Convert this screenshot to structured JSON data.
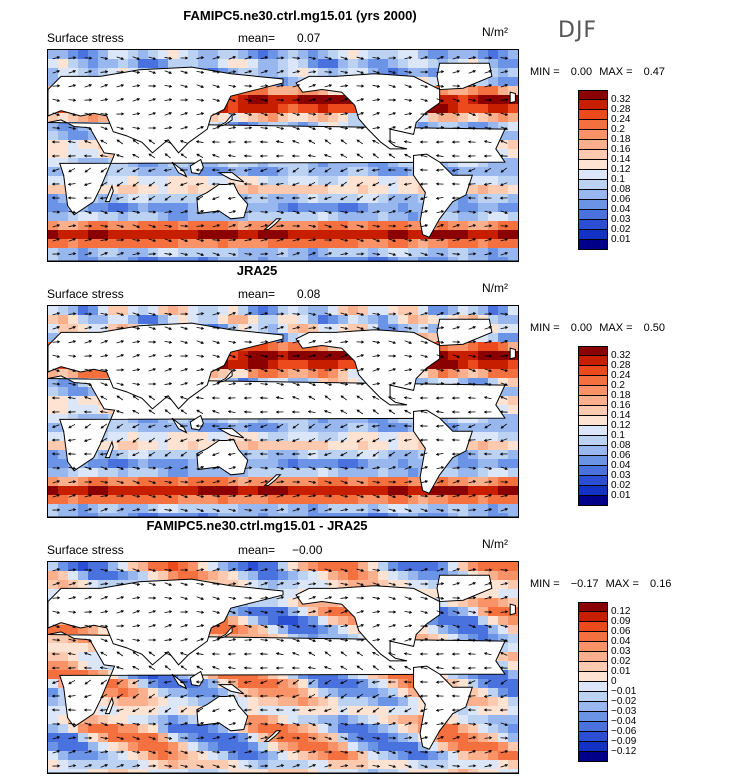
{
  "season": "DJF",
  "chart_data": [
    {
      "type": "heatmap",
      "title": "FAMIPC5.ne30.ctrl.mg15.01 (yrs 2000)",
      "field": "Surface stress",
      "mean_label": "mean=",
      "mean": "0.07",
      "units": "N/m²",
      "min_label": "MIN =",
      "min": "0.00",
      "max_label": "MAX =",
      "max": "0.47",
      "levels": [
        "0.32",
        "0.28",
        "0.24",
        "0.2",
        "0.18",
        "0.16",
        "0.14",
        "0.12",
        "0.1",
        "0.08",
        "0.06",
        "0.04",
        "0.03",
        "0.02",
        "0.01"
      ],
      "colors": [
        "#8b0000",
        "#c81e00",
        "#ec4a1c",
        "#f5703f",
        "#f99367",
        "#fbb08d",
        "#fdcab0",
        "#fee3d3",
        "#dbe7f8",
        "#bcd2f3",
        "#97b7ee",
        "#6c94e6",
        "#4a72de",
        "#2a4fd4",
        "#1332c4",
        "#00008b"
      ]
    },
    {
      "type": "heatmap",
      "title": "JRA25",
      "field": "Surface stress",
      "mean_label": "mean=",
      "mean": "0.08",
      "units": "N/m²",
      "min_label": "MIN =",
      "min": "0.00",
      "max_label": "MAX =",
      "max": "0.50",
      "levels": [
        "0.32",
        "0.28",
        "0.24",
        "0.2",
        "0.18",
        "0.16",
        "0.14",
        "0.12",
        "0.1",
        "0.08",
        "0.06",
        "0.04",
        "0.03",
        "0.02",
        "0.01"
      ],
      "colors": [
        "#8b0000",
        "#c81e00",
        "#ec4a1c",
        "#f5703f",
        "#f99367",
        "#fbb08d",
        "#fdcab0",
        "#fee3d3",
        "#dbe7f8",
        "#bcd2f3",
        "#97b7ee",
        "#6c94e6",
        "#4a72de",
        "#2a4fd4",
        "#1332c4",
        "#00008b"
      ]
    },
    {
      "type": "heatmap",
      "title": "FAMIPC5.ne30.ctrl.mg15.01 - JRA25",
      "field": "Surface stress",
      "mean_label": "mean=",
      "mean": "−0.00",
      "units": "N/m²",
      "min_label": "MIN =",
      "min": "−0.17",
      "max_label": "MAX =",
      "max": "0.16",
      "levels": [
        "0.12",
        "0.09",
        "0.06",
        "0.04",
        "0.03",
        "0.02",
        "0.01",
        "0",
        "−0.01",
        "−0.02",
        "−0.03",
        "−0.04",
        "−0.06",
        "−0.09",
        "−0.12"
      ],
      "colors": [
        "#8b0000",
        "#c81e00",
        "#ec4a1c",
        "#f5703f",
        "#f99367",
        "#fbb08d",
        "#fdcab0",
        "#fee3d3",
        "#dbe7f8",
        "#bcd2f3",
        "#97b7ee",
        "#6c94e6",
        "#4a72de",
        "#2a4fd4",
        "#1332c4",
        "#00008b"
      ]
    }
  ]
}
